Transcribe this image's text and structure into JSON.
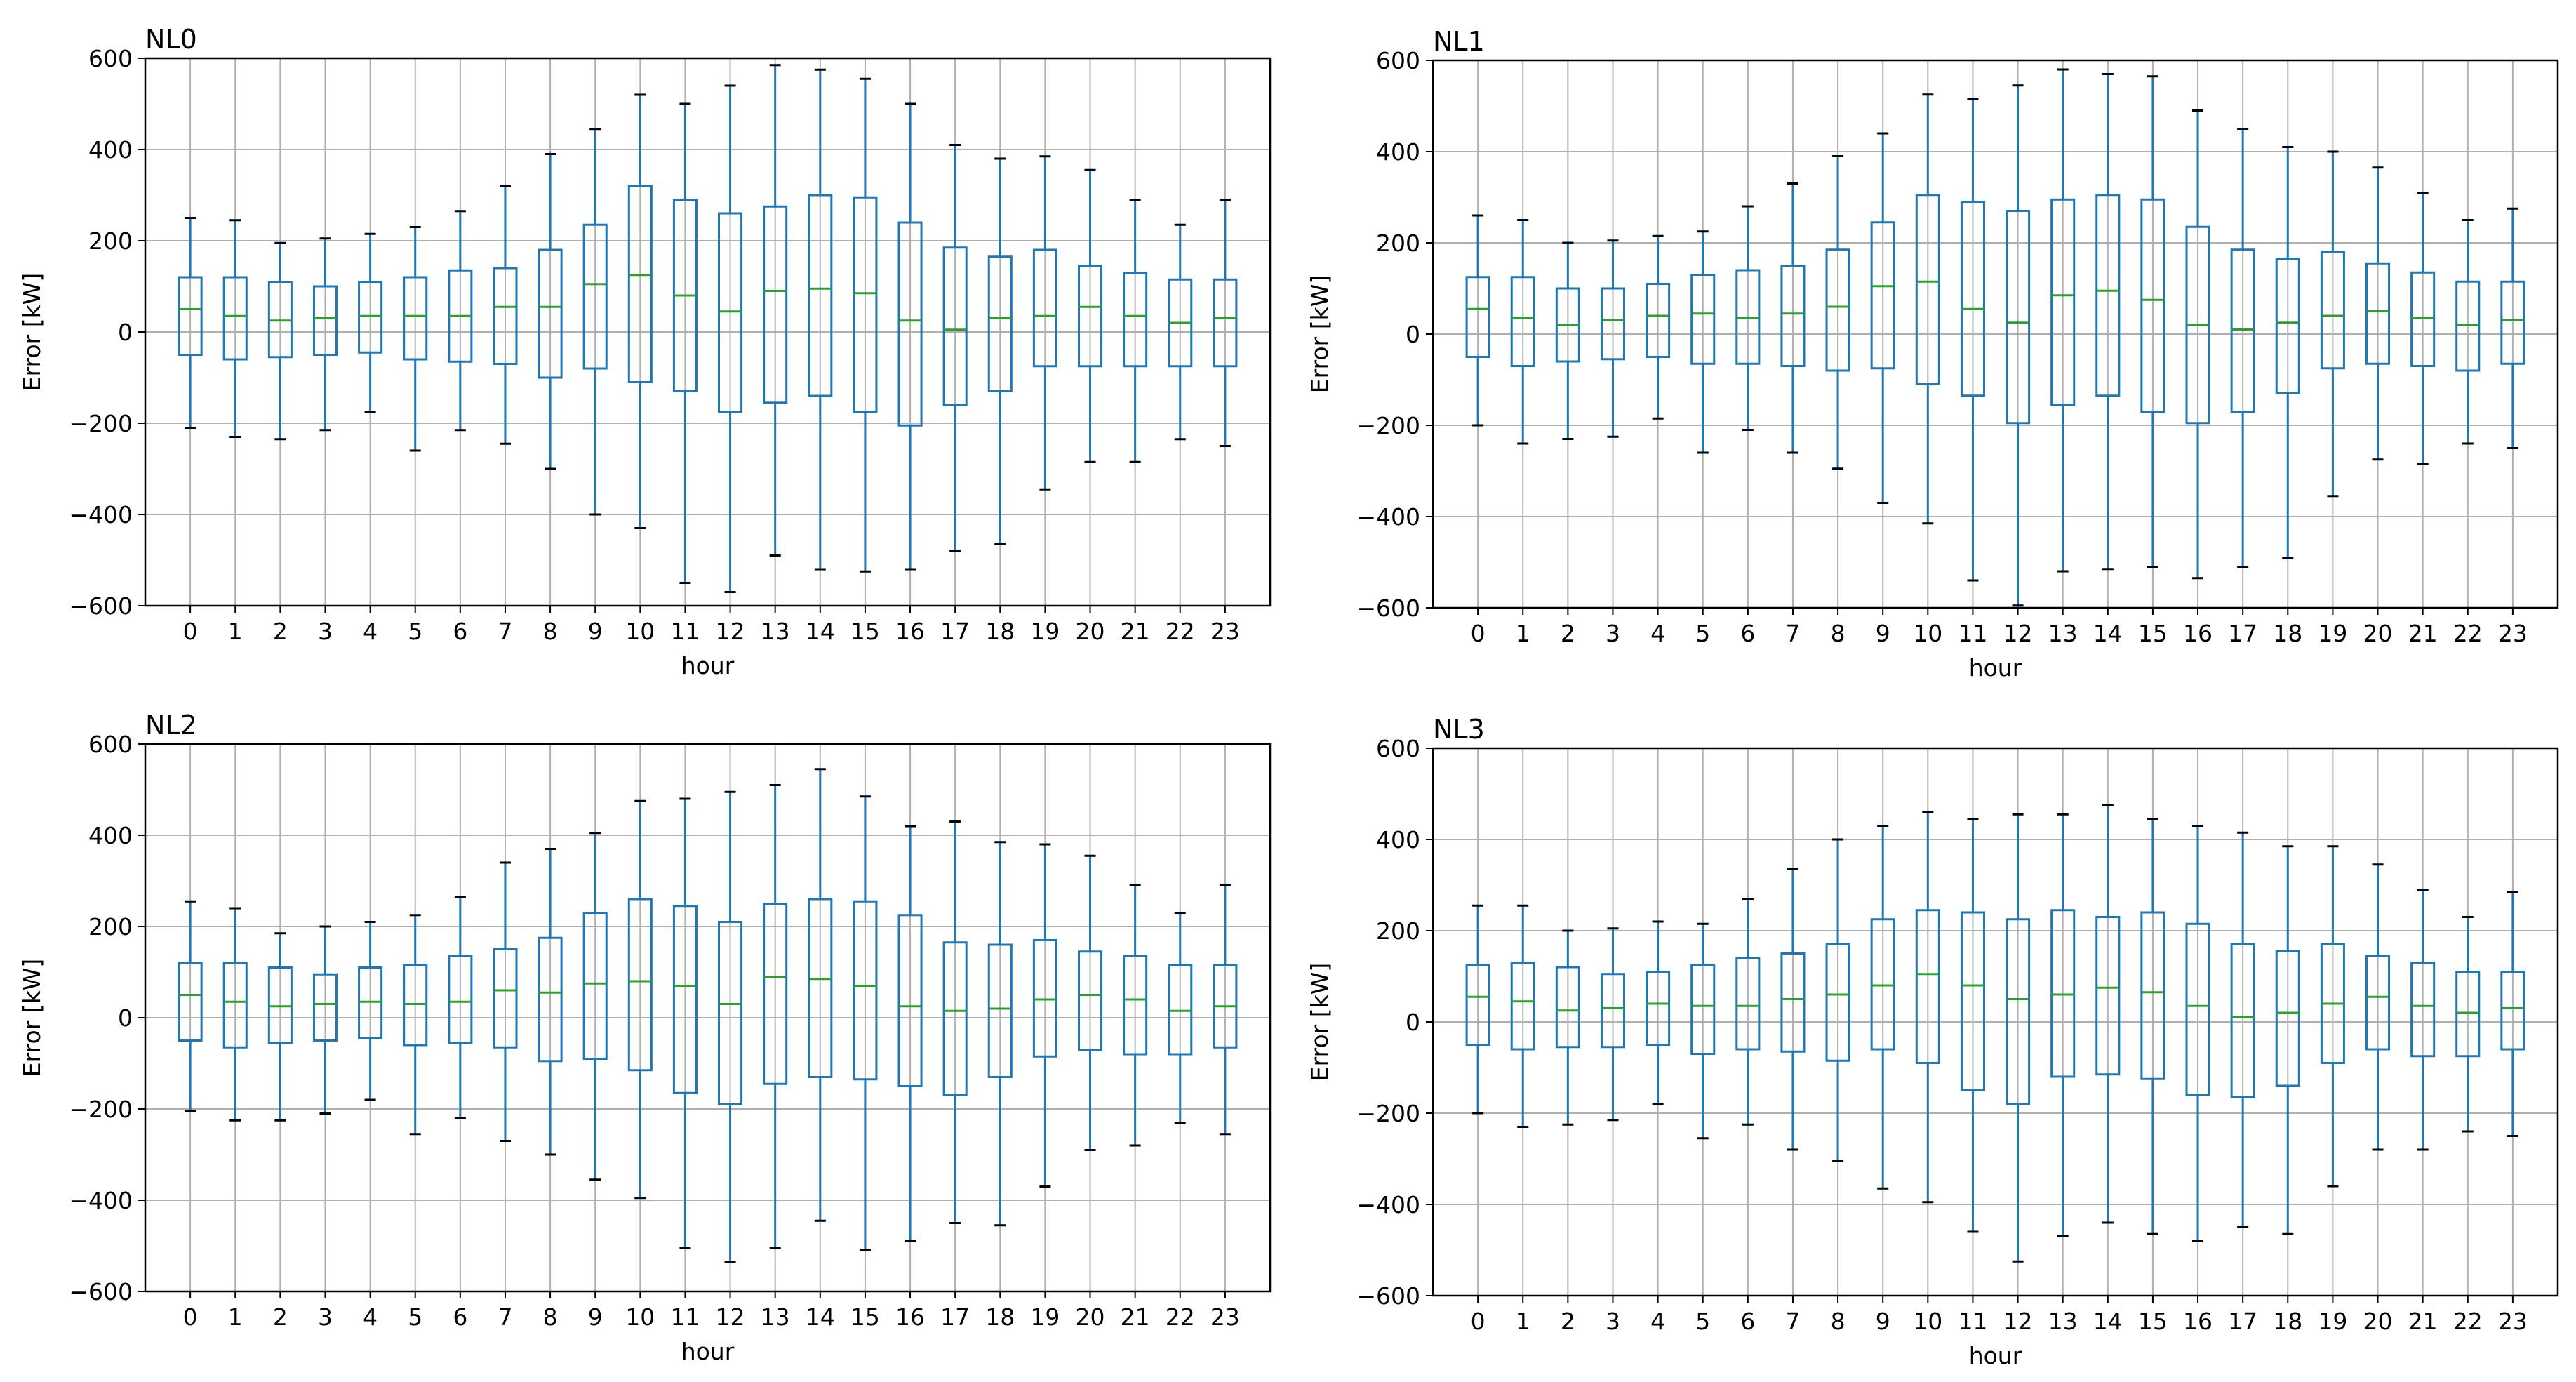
{
  "figure": {
    "style": {
      "box_color": "#1f77b4",
      "median_color": "#2ca02c",
      "grid_color": "#b0b0b0",
      "cap_color": "#000000"
    }
  },
  "chart_data": [
    {
      "type": "box",
      "title": "NL0",
      "xlabel": "hour",
      "ylabel": "Error [kW]",
      "ylim": [
        -600,
        600
      ],
      "yticks": [
        "600",
        "400",
        "200",
        "0",
        "−200",
        "−400",
        "−600"
      ],
      "grid": true,
      "categories": [
        "0",
        "1",
        "2",
        "3",
        "4",
        "5",
        "6",
        "7",
        "8",
        "9",
        "10",
        "11",
        "12",
        "13",
        "14",
        "15",
        "16",
        "17",
        "18",
        "19",
        "20",
        "21",
        "22",
        "23"
      ],
      "boxes": [
        {
          "whislo": -210,
          "q1": -50,
          "med": 50,
          "q3": 120,
          "whishi": 250
        },
        {
          "whislo": -230,
          "q1": -60,
          "med": 35,
          "q3": 120,
          "whishi": 245
        },
        {
          "whislo": -235,
          "q1": -55,
          "med": 25,
          "q3": 110,
          "whishi": 195
        },
        {
          "whislo": -215,
          "q1": -50,
          "med": 30,
          "q3": 100,
          "whishi": 205
        },
        {
          "whislo": -175,
          "q1": -45,
          "med": 35,
          "q3": 110,
          "whishi": 215
        },
        {
          "whislo": -260,
          "q1": -60,
          "med": 35,
          "q3": 120,
          "whishi": 230
        },
        {
          "whislo": -215,
          "q1": -65,
          "med": 35,
          "q3": 135,
          "whishi": 265
        },
        {
          "whislo": -245,
          "q1": -70,
          "med": 55,
          "q3": 140,
          "whishi": 320
        },
        {
          "whislo": -300,
          "q1": -100,
          "med": 55,
          "q3": 180,
          "whishi": 390
        },
        {
          "whislo": -400,
          "q1": -80,
          "med": 105,
          "q3": 235,
          "whishi": 445
        },
        {
          "whislo": -430,
          "q1": -110,
          "med": 125,
          "q3": 320,
          "whishi": 520
        },
        {
          "whislo": -550,
          "q1": -130,
          "med": 80,
          "q3": 290,
          "whishi": 500
        },
        {
          "whislo": -570,
          "q1": -175,
          "med": 45,
          "q3": 260,
          "whishi": 540
        },
        {
          "whislo": -490,
          "q1": -155,
          "med": 90,
          "q3": 275,
          "whishi": 585
        },
        {
          "whislo": -520,
          "q1": -140,
          "med": 95,
          "q3": 300,
          "whishi": 575
        },
        {
          "whislo": -525,
          "q1": -175,
          "med": 85,
          "q3": 295,
          "whishi": 555
        },
        {
          "whislo": -520,
          "q1": -205,
          "med": 25,
          "q3": 240,
          "whishi": 500
        },
        {
          "whislo": -480,
          "q1": -160,
          "med": 5,
          "q3": 185,
          "whishi": 410
        },
        {
          "whislo": -465,
          "q1": -130,
          "med": 30,
          "q3": 165,
          "whishi": 380
        },
        {
          "whislo": -345,
          "q1": -75,
          "med": 35,
          "q3": 180,
          "whishi": 385
        },
        {
          "whislo": -285,
          "q1": -75,
          "med": 55,
          "q3": 145,
          "whishi": 355
        },
        {
          "whislo": -285,
          "q1": -75,
          "med": 35,
          "q3": 130,
          "whishi": 290
        },
        {
          "whislo": -235,
          "q1": -75,
          "med": 20,
          "q3": 115,
          "whishi": 235
        },
        {
          "whislo": -250,
          "q1": -75,
          "med": 30,
          "q3": 115,
          "whishi": 290
        }
      ]
    },
    {
      "type": "box",
      "title": "NL1",
      "xlabel": "hour",
      "ylabel": "Error [kW]",
      "ylim": [
        -600,
        600
      ],
      "yticks": [
        "600",
        "400",
        "200",
        "0",
        "−200",
        "−400",
        "−600"
      ],
      "grid": true,
      "categories": [
        "0",
        "1",
        "2",
        "3",
        "4",
        "5",
        "6",
        "7",
        "8",
        "9",
        "10",
        "11",
        "12",
        "13",
        "14",
        "15",
        "16",
        "17",
        "18",
        "19",
        "20",
        "21",
        "22",
        "23"
      ],
      "boxes": [
        {
          "whislo": -200,
          "q1": -50,
          "med": 55,
          "q3": 125,
          "whishi": 260
        },
        {
          "whislo": -240,
          "q1": -70,
          "med": 35,
          "q3": 125,
          "whishi": 250
        },
        {
          "whislo": -230,
          "q1": -60,
          "med": 20,
          "q3": 100,
          "whishi": 200
        },
        {
          "whislo": -225,
          "q1": -55,
          "med": 30,
          "q3": 100,
          "whishi": 205
        },
        {
          "whislo": -185,
          "q1": -50,
          "med": 40,
          "q3": 110,
          "whishi": 215
        },
        {
          "whislo": -260,
          "q1": -65,
          "med": 45,
          "q3": 130,
          "whishi": 225
        },
        {
          "whislo": -210,
          "q1": -65,
          "med": 35,
          "q3": 140,
          "whishi": 280
        },
        {
          "whislo": -260,
          "q1": -70,
          "med": 45,
          "q3": 150,
          "whishi": 330
        },
        {
          "whislo": -295,
          "q1": -80,
          "med": 60,
          "q3": 185,
          "whishi": 390
        },
        {
          "whislo": -370,
          "q1": -75,
          "med": 105,
          "q3": 245,
          "whishi": 440
        },
        {
          "whislo": -415,
          "q1": -110,
          "med": 115,
          "q3": 305,
          "whishi": 525
        },
        {
          "whislo": -540,
          "q1": -135,
          "med": 55,
          "q3": 290,
          "whishi": 515
        },
        {
          "whislo": -595,
          "q1": -195,
          "med": 25,
          "q3": 270,
          "whishi": 545
        },
        {
          "whislo": -520,
          "q1": -155,
          "med": 85,
          "q3": 295,
          "whishi": 580
        },
        {
          "whislo": -515,
          "q1": -135,
          "med": 95,
          "q3": 305,
          "whishi": 570
        },
        {
          "whislo": -510,
          "q1": -170,
          "med": 75,
          "q3": 295,
          "whishi": 565
        },
        {
          "whislo": -535,
          "q1": -195,
          "med": 20,
          "q3": 235,
          "whishi": 490
        },
        {
          "whislo": -510,
          "q1": -170,
          "med": 10,
          "q3": 185,
          "whishi": 450
        },
        {
          "whislo": -490,
          "q1": -130,
          "med": 25,
          "q3": 165,
          "whishi": 410
        },
        {
          "whislo": -355,
          "q1": -75,
          "med": 40,
          "q3": 180,
          "whishi": 400
        },
        {
          "whislo": -275,
          "q1": -65,
          "med": 50,
          "q3": 155,
          "whishi": 365
        },
        {
          "whislo": -285,
          "q1": -70,
          "med": 35,
          "q3": 135,
          "whishi": 310
        },
        {
          "whislo": -240,
          "q1": -80,
          "med": 20,
          "q3": 115,
          "whishi": 250
        },
        {
          "whislo": -250,
          "q1": -65,
          "med": 30,
          "q3": 115,
          "whishi": 275
        }
      ]
    },
    {
      "type": "box",
      "title": "NL2",
      "xlabel": "hour",
      "ylabel": "Error [kW]",
      "ylim": [
        -600,
        600
      ],
      "yticks": [
        "600",
        "400",
        "200",
        "0",
        "−200",
        "−400",
        "−600"
      ],
      "grid": true,
      "categories": [
        "0",
        "1",
        "2",
        "3",
        "4",
        "5",
        "6",
        "7",
        "8",
        "9",
        "10",
        "11",
        "12",
        "13",
        "14",
        "15",
        "16",
        "17",
        "18",
        "19",
        "20",
        "21",
        "22",
        "23"
      ],
      "boxes": [
        {
          "whislo": -205,
          "q1": -50,
          "med": 50,
          "q3": 120,
          "whishi": 255
        },
        {
          "whislo": -225,
          "q1": -65,
          "med": 35,
          "q3": 120,
          "whishi": 240
        },
        {
          "whislo": -225,
          "q1": -55,
          "med": 25,
          "q3": 110,
          "whishi": 185
        },
        {
          "whislo": -210,
          "q1": -50,
          "med": 30,
          "q3": 95,
          "whishi": 200
        },
        {
          "whislo": -180,
          "q1": -45,
          "med": 35,
          "q3": 110,
          "whishi": 210
        },
        {
          "whislo": -255,
          "q1": -60,
          "med": 30,
          "q3": 115,
          "whishi": 225
        },
        {
          "whislo": -220,
          "q1": -55,
          "med": 35,
          "q3": 135,
          "whishi": 265
        },
        {
          "whislo": -270,
          "q1": -65,
          "med": 60,
          "q3": 150,
          "whishi": 340
        },
        {
          "whislo": -300,
          "q1": -95,
          "med": 55,
          "q3": 175,
          "whishi": 370
        },
        {
          "whislo": -355,
          "q1": -90,
          "med": 75,
          "q3": 230,
          "whishi": 405
        },
        {
          "whislo": -395,
          "q1": -115,
          "med": 80,
          "q3": 260,
          "whishi": 475
        },
        {
          "whislo": -505,
          "q1": -165,
          "med": 70,
          "q3": 245,
          "whishi": 480
        },
        {
          "whislo": -535,
          "q1": -190,
          "med": 30,
          "q3": 210,
          "whishi": 495
        },
        {
          "whislo": -505,
          "q1": -145,
          "med": 90,
          "q3": 250,
          "whishi": 510
        },
        {
          "whislo": -445,
          "q1": -130,
          "med": 85,
          "q3": 260,
          "whishi": 545
        },
        {
          "whislo": -510,
          "q1": -135,
          "med": 70,
          "q3": 255,
          "whishi": 485
        },
        {
          "whislo": -490,
          "q1": -150,
          "med": 25,
          "q3": 225,
          "whishi": 420
        },
        {
          "whislo": -450,
          "q1": -170,
          "med": 15,
          "q3": 165,
          "whishi": 430
        },
        {
          "whislo": -455,
          "q1": -130,
          "med": 20,
          "q3": 160,
          "whishi": 385
        },
        {
          "whislo": -370,
          "q1": -85,
          "med": 40,
          "q3": 170,
          "whishi": 380
        },
        {
          "whislo": -290,
          "q1": -70,
          "med": 50,
          "q3": 145,
          "whishi": 355
        },
        {
          "whislo": -280,
          "q1": -80,
          "med": 40,
          "q3": 135,
          "whishi": 290
        },
        {
          "whislo": -230,
          "q1": -80,
          "med": 15,
          "q3": 115,
          "whishi": 230
        },
        {
          "whislo": -255,
          "q1": -65,
          "med": 25,
          "q3": 115,
          "whishi": 290
        }
      ]
    },
    {
      "type": "box",
      "title": "NL3",
      "xlabel": "hour",
      "ylabel": "Error [kW]",
      "ylim": [
        -600,
        600
      ],
      "yticks": [
        "600",
        "400",
        "200",
        "0",
        "−200",
        "−400",
        "−600"
      ],
      "grid": true,
      "categories": [
        "0",
        "1",
        "2",
        "3",
        "4",
        "5",
        "6",
        "7",
        "8",
        "9",
        "10",
        "11",
        "12",
        "13",
        "14",
        "15",
        "16",
        "17",
        "18",
        "19",
        "20",
        "21",
        "22",
        "23"
      ],
      "boxes": [
        {
          "whislo": -200,
          "q1": -50,
          "med": 55,
          "q3": 125,
          "whishi": 255
        },
        {
          "whislo": -230,
          "q1": -60,
          "med": 45,
          "q3": 130,
          "whishi": 255
        },
        {
          "whislo": -225,
          "q1": -55,
          "med": 25,
          "q3": 120,
          "whishi": 200
        },
        {
          "whislo": -215,
          "q1": -55,
          "med": 30,
          "q3": 105,
          "whishi": 205
        },
        {
          "whislo": -180,
          "q1": -50,
          "med": 40,
          "q3": 110,
          "whishi": 220
        },
        {
          "whislo": -255,
          "q1": -70,
          "med": 35,
          "q3": 125,
          "whishi": 215
        },
        {
          "whislo": -225,
          "q1": -60,
          "med": 35,
          "q3": 140,
          "whishi": 270
        },
        {
          "whislo": -280,
          "q1": -65,
          "med": 50,
          "q3": 150,
          "whishi": 335
        },
        {
          "whislo": -305,
          "q1": -85,
          "med": 60,
          "q3": 170,
          "whishi": 400
        },
        {
          "whislo": -365,
          "q1": -60,
          "med": 80,
          "q3": 225,
          "whishi": 430
        },
        {
          "whislo": -395,
          "q1": -90,
          "med": 105,
          "q3": 245,
          "whishi": 460
        },
        {
          "whislo": -460,
          "q1": -150,
          "med": 80,
          "q3": 240,
          "whishi": 445
        },
        {
          "whislo": -525,
          "q1": -180,
          "med": 50,
          "q3": 225,
          "whishi": 455
        },
        {
          "whislo": -470,
          "q1": -120,
          "med": 60,
          "q3": 245,
          "whishi": 455
        },
        {
          "whislo": -440,
          "q1": -115,
          "med": 75,
          "q3": 230,
          "whishi": 475
        },
        {
          "whislo": -465,
          "q1": -125,
          "med": 65,
          "q3": 240,
          "whishi": 445
        },
        {
          "whislo": -480,
          "q1": -160,
          "med": 35,
          "q3": 215,
          "whishi": 430
        },
        {
          "whislo": -450,
          "q1": -165,
          "med": 10,
          "q3": 170,
          "whishi": 415
        },
        {
          "whislo": -465,
          "q1": -140,
          "med": 20,
          "q3": 155,
          "whishi": 385
        },
        {
          "whislo": -360,
          "q1": -90,
          "med": 40,
          "q3": 170,
          "whishi": 385
        },
        {
          "whislo": -280,
          "q1": -60,
          "med": 55,
          "q3": 145,
          "whishi": 345
        },
        {
          "whislo": -280,
          "q1": -75,
          "med": 35,
          "q3": 130,
          "whishi": 290
        },
        {
          "whislo": -240,
          "q1": -75,
          "med": 20,
          "q3": 110,
          "whishi": 230
        },
        {
          "whislo": -250,
          "q1": -60,
          "med": 30,
          "q3": 110,
          "whishi": 285
        }
      ]
    }
  ]
}
